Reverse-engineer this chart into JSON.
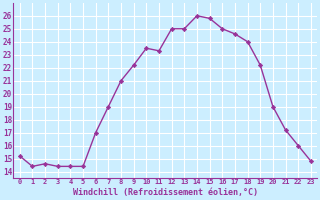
{
  "x": [
    0,
    1,
    2,
    3,
    4,
    5,
    6,
    7,
    8,
    9,
    10,
    11,
    12,
    13,
    14,
    15,
    16,
    17,
    18,
    19,
    20,
    21,
    22,
    23
  ],
  "y": [
    15.2,
    14.4,
    14.6,
    14.4,
    14.4,
    14.4,
    17.0,
    19.0,
    21.0,
    22.2,
    23.5,
    23.3,
    25.0,
    25.0,
    26.0,
    25.8,
    25.0,
    24.6,
    24.0,
    22.2,
    19.0,
    17.2,
    16.0,
    14.8
  ],
  "line_color": "#993399",
  "marker": "D",
  "markersize": 2.2,
  "linewidth": 1.0,
  "bg_color": "#cceeff",
  "grid_color": "#ffffff",
  "xlabel": "Windchill (Refroidissement éolien,°C)",
  "xlabel_color": "#993399",
  "tick_color": "#993399",
  "ylim": [
    13.5,
    27.0
  ],
  "xlim": [
    -0.5,
    23.5
  ],
  "xtick_labels": [
    "0",
    "1",
    "2",
    "3",
    "4",
    "5",
    "6",
    "7",
    "8",
    "9",
    "10",
    "11",
    "12",
    "13",
    "14",
    "15",
    "16",
    "17",
    "18",
    "19",
    "20",
    "21",
    "22",
    "23"
  ],
  "ytick_values": [
    14,
    15,
    16,
    17,
    18,
    19,
    20,
    21,
    22,
    23,
    24,
    25,
    26
  ]
}
